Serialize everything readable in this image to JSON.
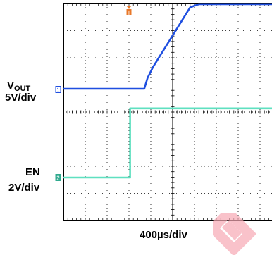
{
  "chart_data": {
    "type": "line",
    "x_unit_label": "400µs/div",
    "x_divisions": 10,
    "xlim_div": [
      0,
      10
    ],
    "grid": true,
    "trigger_marker": "T",
    "channels": [
      {
        "id": "1",
        "name_main": "V",
        "name_sub": "OUT",
        "scale_label": "5V/div",
        "color": "#1f4fe0",
        "ground_level_div": 0,
        "points": [
          [
            0,
            0
          ],
          [
            3.7,
            0
          ],
          [
            3.85,
            0.4
          ],
          [
            4.1,
            0.8
          ],
          [
            5.8,
            3.0
          ],
          [
            6.2,
            3.12
          ],
          [
            10,
            3.12
          ]
        ]
      },
      {
        "id": "2",
        "name_main": "EN",
        "name_sub": "",
        "scale_label": "2V/div",
        "color": "#5fe0c0",
        "ground_level_div": 0,
        "points": [
          [
            0,
            0
          ],
          [
            3.05,
            0
          ],
          [
            3.05,
            2.55
          ],
          [
            10,
            2.55
          ]
        ]
      }
    ]
  },
  "colors": {
    "grid": "#000000",
    "watermark": "#f7a8b4",
    "trigger": "#e8782a",
    "marker_ch1": "#1f4fe0",
    "marker_ch2": "#2fa98e"
  }
}
